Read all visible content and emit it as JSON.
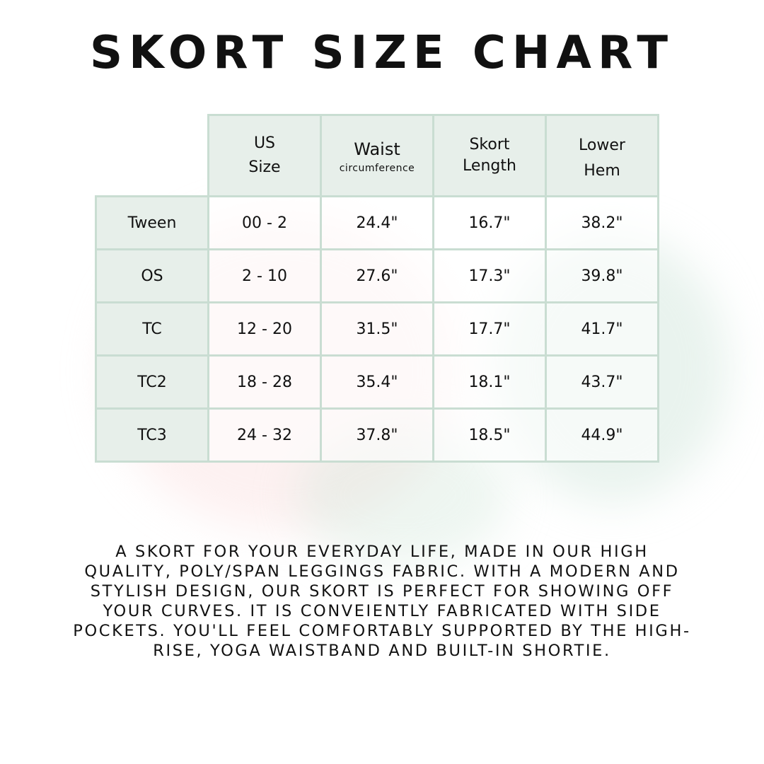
{
  "title": "SKORT SIZE CHART",
  "table": {
    "headers": [
      {
        "line1": "US",
        "line2": "Size"
      },
      {
        "line1": "Waist",
        "line2": "circumference"
      },
      {
        "line1": "Skort",
        "line2": "Length"
      },
      {
        "line1": "Lower",
        "line2": "Hem"
      }
    ],
    "rows": [
      {
        "label": "Tween",
        "us_size": "00 - 2",
        "waist": "24.4\"",
        "length": "16.7\"",
        "hem": "38.2\""
      },
      {
        "label": "OS",
        "us_size": "2 - 10",
        "waist": "27.6\"",
        "length": "17.3\"",
        "hem": "39.8\""
      },
      {
        "label": "TC",
        "us_size": "12 - 20",
        "waist": "31.5\"",
        "length": "17.7\"",
        "hem": "41.7\""
      },
      {
        "label": "TC2",
        "us_size": "18 - 28",
        "waist": "35.4\"",
        "length": "18.1\"",
        "hem": "43.7\""
      },
      {
        "label": "TC3",
        "us_size": "24 - 32",
        "waist": "37.8\"",
        "length": "18.5\"",
        "hem": "44.9\""
      }
    ]
  },
  "description": "A skort for your everyday life, made in our high quality, poly/span leggings fabric. With a modern and stylish design, our skort is perfect for showing off your curves. It is conveiently fabricated with side pockets. You'll feel comfortably supported by the high-rise, yoga waistband and built-in shortie.",
  "colors": {
    "border": "#c9ddd2",
    "header_bg": "#e7efea"
  }
}
